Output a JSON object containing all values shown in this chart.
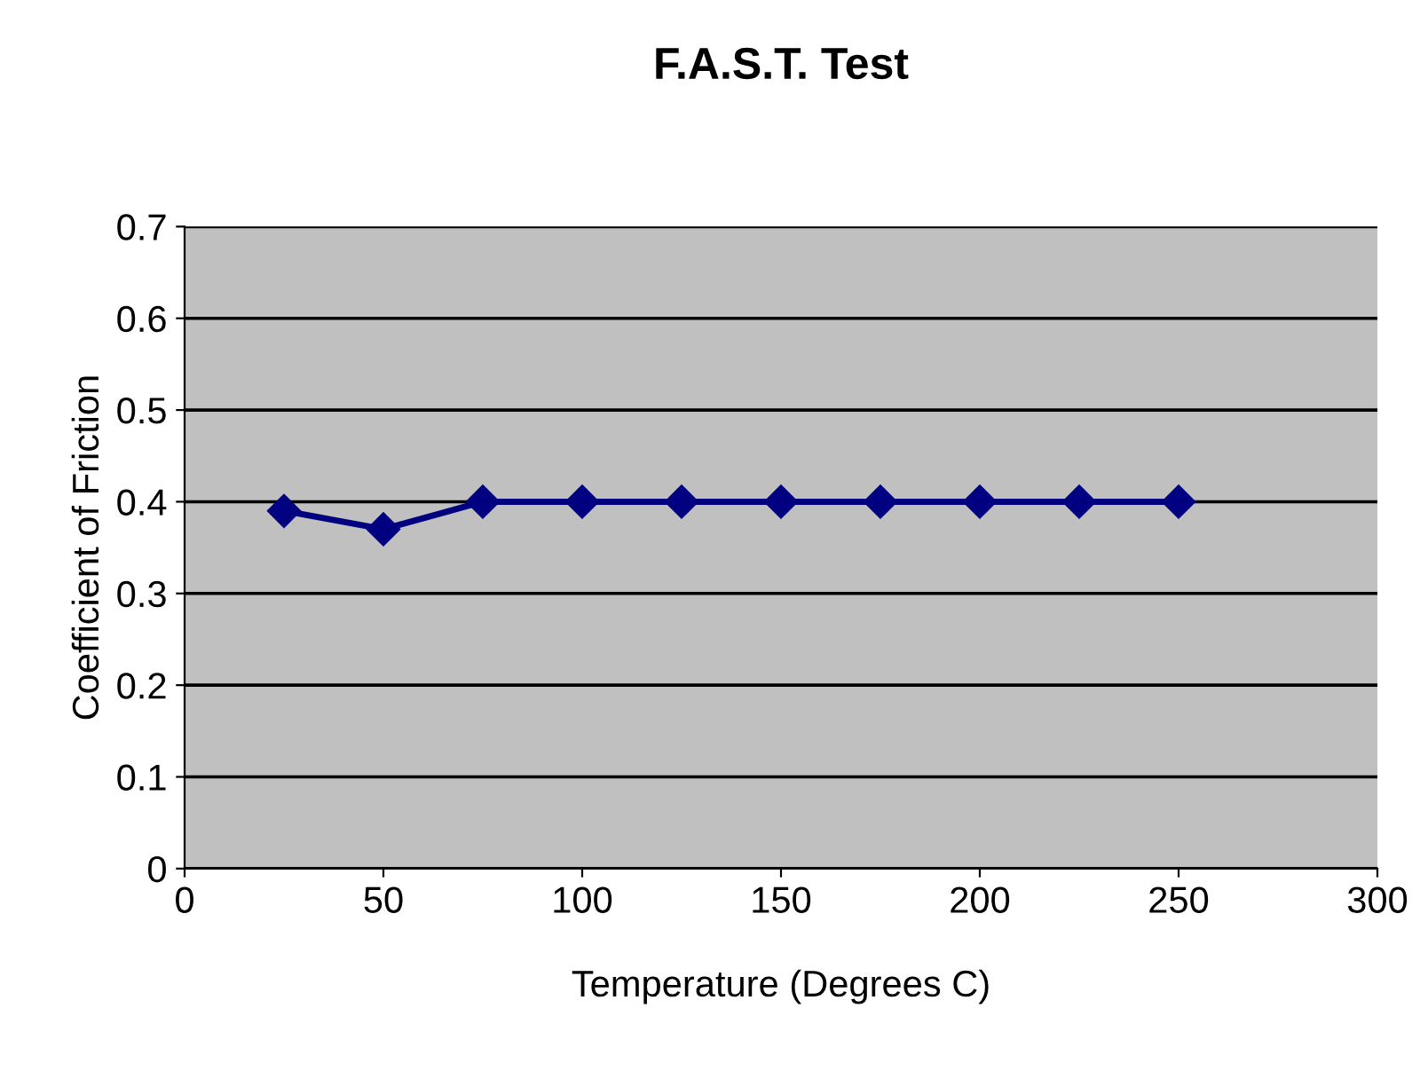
{
  "chart_data": {
    "type": "line",
    "title": "F.A.S.T. Test",
    "xlabel": "Temperature (Degrees C)",
    "ylabel": "Coefficient of Friction",
    "x": [
      25,
      50,
      75,
      100,
      125,
      150,
      175,
      200,
      225,
      250
    ],
    "series": [
      {
        "color": "#000080",
        "values": [
          0.39,
          0.37,
          0.4,
          0.4,
          0.4,
          0.4,
          0.4,
          0.4,
          0.4,
          0.4
        ]
      }
    ],
    "xlim": [
      0,
      300
    ],
    "xticks": [
      0,
      50,
      100,
      150,
      200,
      250,
      300
    ],
    "ylim": [
      0,
      0.7
    ],
    "yticks": [
      0,
      0.1,
      0.2,
      0.3,
      0.4,
      0.5,
      0.6,
      0.7
    ],
    "grid": "y",
    "marker": "diamond",
    "line_style": "solid"
  }
}
